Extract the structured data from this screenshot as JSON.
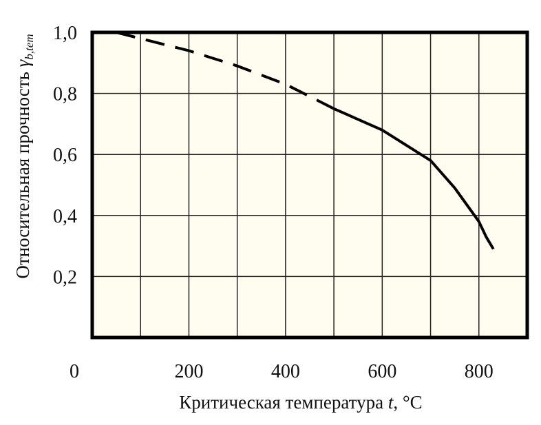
{
  "chart_data": {
    "type": "line",
    "xlabel": "Критическая температура",
    "xlabel_var": "t",
    "xlabel_unit": ", °C",
    "ylabel": "Относительная прочность",
    "ylabel_var": "γ",
    "ylabel_sub": "b,tem",
    "xlim": [
      0,
      900
    ],
    "ylim": [
      0,
      1.0
    ],
    "x_ticks": [
      0,
      200,
      400,
      600,
      800
    ],
    "x_tick_labels": [
      "0",
      "200",
      "400",
      "600",
      "800"
    ],
    "y_ticks": [
      0.2,
      0.4,
      0.6,
      0.8,
      1.0
    ],
    "y_tick_labels": [
      "0,2",
      "0,4",
      "0,6",
      "0,8",
      "1,0"
    ],
    "grid": true,
    "background_color": "#fffdf0",
    "line_color": "#000000",
    "series": [
      {
        "style": "dashed",
        "x": [
          50,
          100,
          200,
          300,
          400,
          500
        ],
        "y": [
          1.0,
          0.98,
          0.94,
          0.89,
          0.83,
          0.75
        ]
      },
      {
        "style": "solid",
        "x": [
          500,
          600,
          700,
          750,
          800,
          815,
          830
        ],
        "y": [
          0.75,
          0.68,
          0.58,
          0.49,
          0.38,
          0.33,
          0.29
        ]
      }
    ]
  }
}
